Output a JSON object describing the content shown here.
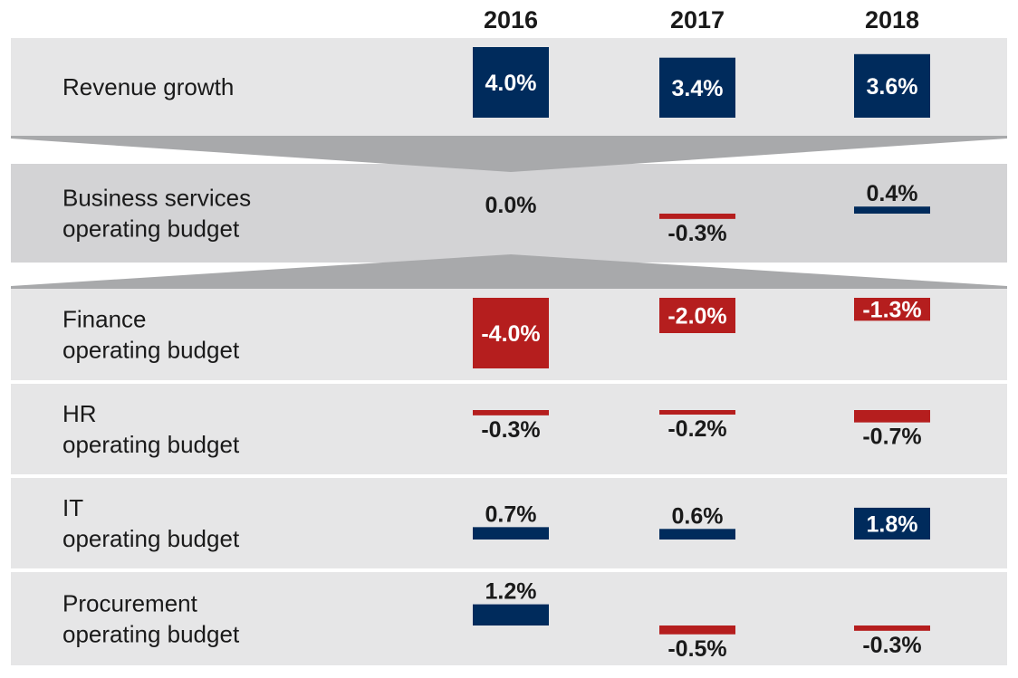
{
  "chart_data": {
    "type": "bar",
    "categories": [
      "2016",
      "2017",
      "2018"
    ],
    "rows": [
      {
        "label_lines": [
          "Revenue growth"
        ],
        "values": [
          4.0,
          3.4,
          3.6
        ],
        "value_labels": [
          "4.0%",
          "3.4%",
          "3.6%"
        ]
      },
      {
        "label_lines": [
          "Business services",
          "operating budget"
        ],
        "values": [
          0.0,
          -0.3,
          0.4
        ],
        "value_labels": [
          "0.0%",
          "-0.3%",
          "0.4%"
        ]
      },
      {
        "label_lines": [
          "Finance",
          "operating budget"
        ],
        "values": [
          -4.0,
          -2.0,
          -1.3
        ],
        "value_labels": [
          "-4.0%",
          "-2.0%",
          "-1.3%"
        ]
      },
      {
        "label_lines": [
          "HR",
          "operating budget"
        ],
        "values": [
          -0.3,
          -0.2,
          -0.7
        ],
        "value_labels": [
          "-0.3%",
          "-0.2%",
          "-0.7%"
        ]
      },
      {
        "label_lines": [
          "IT",
          "operating budget"
        ],
        "values": [
          0.7,
          0.6,
          1.8
        ],
        "value_labels": [
          "0.7%",
          "0.6%",
          "1.8%"
        ]
      },
      {
        "label_lines": [
          "Procurement",
          "operating budget"
        ],
        "values": [
          1.2,
          -0.5,
          -0.3
        ],
        "value_labels": [
          "1.2%",
          "-0.5%",
          "-0.3%"
        ]
      }
    ],
    "colors": {
      "positive": "#002b5c",
      "negative": "#b51e1e",
      "row_background": "#e6e6e7",
      "highlight_row_background": "#d3d3d5",
      "connector": "#a8a9ab"
    }
  }
}
